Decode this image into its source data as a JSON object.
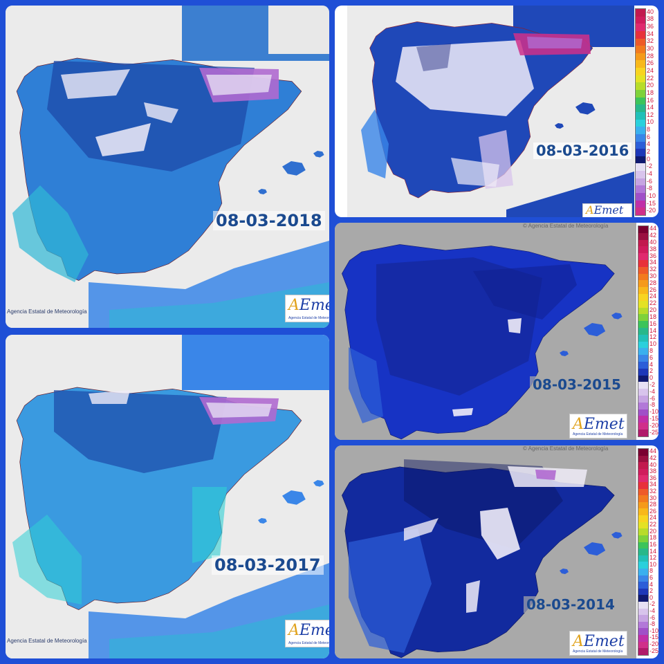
{
  "panels": {
    "p2018": {
      "date": "08-03-2018",
      "credit": "Agencia Estatal de Meteorología"
    },
    "p2016": {
      "date": "08-03-2016"
    },
    "p2017": {
      "date": "08-03-2017",
      "credit": "Agencia Estatal de Meteorología"
    },
    "p2015": {
      "date": "08-03-2015",
      "copyright": "© Agencia Estatal de Meteorología"
    },
    "p2014": {
      "date": "08-03-2014",
      "copyright": "© Agencia Estatal de Meteorología"
    }
  },
  "logo": {
    "a": "A",
    "rest": "Emet",
    "subtitle": "Agencia Estatal de Meteorología"
  },
  "legend_2016": [
    "40",
    "38",
    "36",
    "34",
    "32",
    "30",
    "28",
    "26",
    "24",
    "22",
    "20",
    "18",
    "16",
    "14",
    "12",
    "10",
    "8",
    "6",
    "4",
    "2",
    "0",
    "-2",
    "-4",
    "-6",
    "-8",
    "-10",
    "-15",
    "-20"
  ],
  "legend_2015": [
    "44",
    "42",
    "40",
    "38",
    "36",
    "34",
    "32",
    "30",
    "28",
    "26",
    "24",
    "22",
    "20",
    "18",
    "16",
    "14",
    "12",
    "10",
    "8",
    "6",
    "4",
    "2",
    "0",
    "-2",
    "-4",
    "-6",
    "-8",
    "-10",
    "-15",
    "-20",
    "-25"
  ],
  "legend_2014": [
    "44",
    "42",
    "40",
    "38",
    "36",
    "34",
    "32",
    "30",
    "28",
    "26",
    "24",
    "22",
    "20",
    "18",
    "16",
    "14",
    "12",
    "10",
    "8",
    "6",
    "4",
    "2",
    "0",
    "-2",
    "-4",
    "-6",
    "-8",
    "-10",
    "-15",
    "-20",
    "-25"
  ],
  "legend_colors": {
    "44": "#7a0030",
    "42": "#9a1040",
    "40": "#c21a4e",
    "38": "#d01c5c",
    "36": "#e02a6e",
    "34": "#e8303a",
    "32": "#ee5a28",
    "30": "#f27a1e",
    "28": "#f59a1a",
    "26": "#f8b81a",
    "24": "#f8d420",
    "22": "#e4e224",
    "20": "#b8dc2a",
    "18": "#7ed23a",
    "16": "#3cc45a",
    "14": "#28b88a",
    "12": "#22c0b8",
    "10": "#2ad0dc",
    "8": "#3ab0ee",
    "6": "#3a86e8",
    "4": "#2c5ed8",
    "2": "#1e38b8",
    "0": "#101a70",
    "-2": "#e6e0f4",
    "-4": "#d8c4ec",
    "-6": "#c6a4e2",
    "-8": "#b278d8",
    "-10": "#a050c8",
    "-15": "#c030a8",
    "-20": "#d0308a",
    "-25": "#b01a6a"
  },
  "colors": {
    "background": "#1f4fd6",
    "sea_light": "#e8e8e8",
    "sea_grey": "#a9a9a9",
    "land_2018": "#2f7fd6",
    "land_2017": "#3a9ae0",
    "land_2016": "#1f48b8",
    "land_2015": "#1733c4",
    "land_2014": "#122a9e",
    "frost": "#f0ecf8",
    "snow_purple": "#b06ad0"
  }
}
